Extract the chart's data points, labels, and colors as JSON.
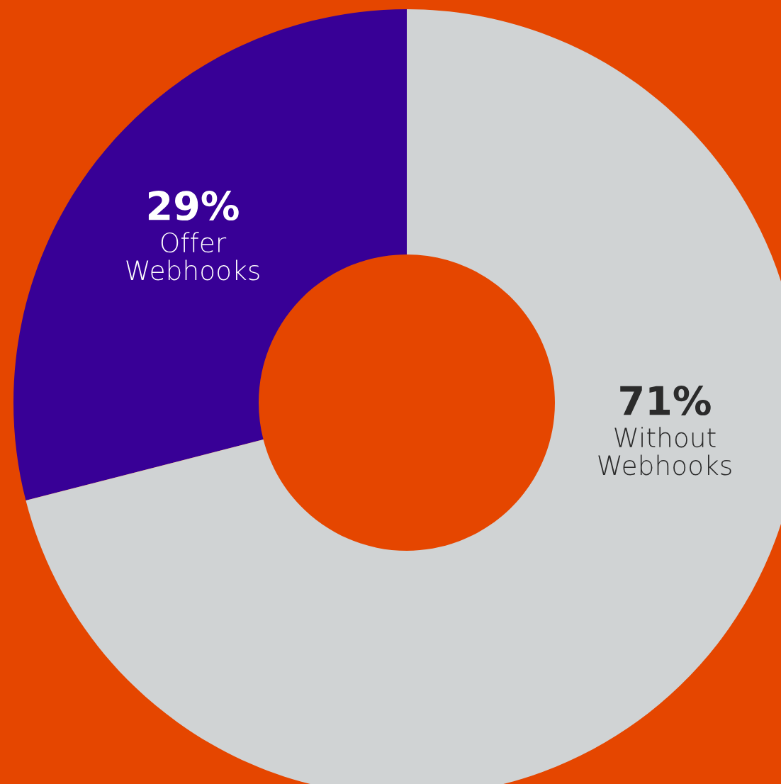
{
  "chart_data": {
    "type": "donut",
    "categories": [
      "Offer Webhooks",
      "Without Webhooks"
    ],
    "values": [
      29,
      71
    ],
    "colors": [
      "#380096",
      "#d0d3d4"
    ],
    "value_labels": [
      "29%",
      "71%"
    ],
    "legend": false
  }
}
